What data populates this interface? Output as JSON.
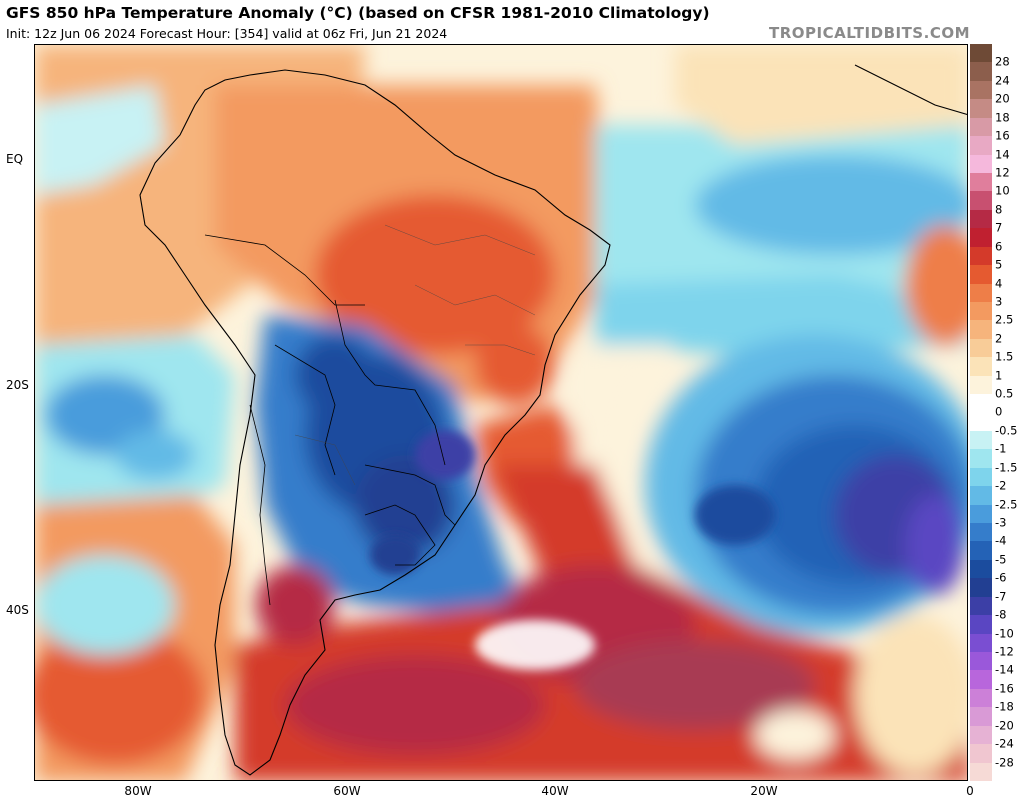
{
  "header": {
    "title": "GFS 850 hPa Temperature Anomaly (°C) (based on CFSR 1981-2010 Climatology)",
    "subtitle": "Init: 12z Jun 06 2024   Forecast Hour: [354]   valid at 06z Fri, Jun 21 2024",
    "brand": "TROPICALTIDBITS.COM"
  },
  "axes": {
    "lat_labels": [
      "EQ",
      "20S",
      "40S"
    ],
    "lon_labels": [
      "80W",
      "60W",
      "40W",
      "20W",
      "0"
    ]
  },
  "colorbar": {
    "levels": [
      {
        "label": "28",
        "color": "#6e4a36"
      },
      {
        "label": "24",
        "color": "#8c5e4c"
      },
      {
        "label": "20",
        "color": "#a97363"
      },
      {
        "label": "18",
        "color": "#c58b85"
      },
      {
        "label": "16",
        "color": "#d89aa6"
      },
      {
        "label": "14",
        "color": "#e8a9c4"
      },
      {
        "label": "12",
        "color": "#f5b8dc"
      },
      {
        "label": "10",
        "color": "#e07e9c"
      },
      {
        "label": "8",
        "color": "#c85070"
      },
      {
        "label": "7",
        "color": "#b52a45"
      },
      {
        "label": "6",
        "color": "#c02030"
      },
      {
        "label": "5",
        "color": "#d43a2a"
      },
      {
        "label": "4",
        "color": "#e55a30"
      },
      {
        "label": "3",
        "color": "#ee7e48"
      },
      {
        "label": "2.5",
        "color": "#f39a60"
      },
      {
        "label": "2",
        "color": "#f6b47c"
      },
      {
        "label": "1.5",
        "color": "#f8cc98"
      },
      {
        "label": "1",
        "color": "#fbe3b8"
      },
      {
        "label": "0.5",
        "color": "#fdf3dc"
      },
      {
        "label": "0",
        "color": "#ffffff"
      },
      {
        "label": "-0.5",
        "color": "#ffffff"
      },
      {
        "label": "-1",
        "color": "#c8f2f4"
      },
      {
        "label": "-1.5",
        "color": "#9fe6ef"
      },
      {
        "label": "-2",
        "color": "#7ed4ec"
      },
      {
        "label": "-2.5",
        "color": "#62bae6"
      },
      {
        "label": "-3",
        "color": "#4a9cdc"
      },
      {
        "label": "-4",
        "color": "#357dcb"
      },
      {
        "label": "-5",
        "color": "#2462b6"
      },
      {
        "label": "-6",
        "color": "#1b4c9e"
      },
      {
        "label": "-7",
        "color": "#223f92"
      },
      {
        "label": "-8",
        "color": "#3c3fa6"
      },
      {
        "label": "-10",
        "color": "#5a46c2"
      },
      {
        "label": "-12",
        "color": "#7a4ed2"
      },
      {
        "label": "-14",
        "color": "#9a58da"
      },
      {
        "label": "-16",
        "color": "#b866dc"
      },
      {
        "label": "-18",
        "color": "#cc80d8"
      },
      {
        "label": "-20",
        "color": "#d99ad6"
      },
      {
        "label": "-24",
        "color": "#e6b2d4"
      },
      {
        "label": "-28",
        "color": "#f0c6d0"
      },
      {
        "label": "",
        "color": "#f6dad6"
      }
    ]
  },
  "palette": {
    "warm_extreme": "#a83a52",
    "warm_strong": "#d43a2a",
    "warm": "#ee7e48",
    "warm_light": "#f6b47c",
    "neutral": "#ffffff",
    "cool_light": "#9fe6ef",
    "cool": "#4a9cdc",
    "cool_strong": "#2462b6",
    "cool_extreme": "#5a46c2"
  }
}
